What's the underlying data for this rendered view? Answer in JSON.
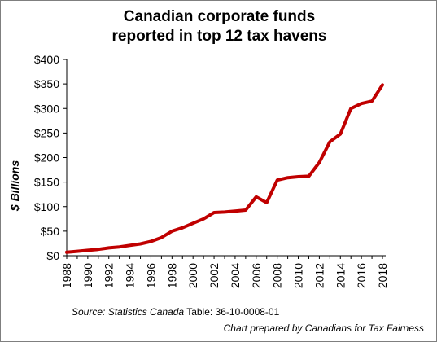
{
  "chart_data": {
    "type": "line",
    "title_line1": "Canadian corporate funds",
    "title_line2": "reported in top 12 tax havens",
    "ylabel": "$ Billions",
    "xlabel": "",
    "ylim": [
      0,
      400
    ],
    "yticks": [
      0,
      50,
      100,
      150,
      200,
      250,
      300,
      350,
      400
    ],
    "ytick_labels": [
      "$0",
      "$50",
      "$100",
      "$150",
      "$200",
      "$250",
      "$300",
      "$350",
      "$400"
    ],
    "xlim": [
      1988,
      2018
    ],
    "xticks": [
      1988,
      1990,
      1992,
      1994,
      1996,
      1998,
      2000,
      2002,
      2004,
      2006,
      2008,
      2010,
      2012,
      2014,
      2016,
      2018
    ],
    "xtick_labels": [
      "1988",
      "1990",
      "1992",
      "1994",
      "1996",
      "1998",
      "2000",
      "2002",
      "2004",
      "2006",
      "2008",
      "2010",
      "2012",
      "2014",
      "2016",
      "2018"
    ],
    "grid": false,
    "legend": "none",
    "series": [
      {
        "color": "#c00000",
        "x": [
          1988,
          1989,
          1990,
          1991,
          1992,
          1993,
          1994,
          1995,
          1996,
          1997,
          1998,
          1999,
          2000,
          2001,
          2002,
          2003,
          2004,
          2005,
          2006,
          2007,
          2008,
          2009,
          2010,
          2011,
          2012,
          2013,
          2014,
          2015,
          2016,
          2017,
          2018
        ],
        "values": [
          7,
          9,
          11,
          13,
          16,
          18,
          21,
          24,
          29,
          37,
          50,
          57,
          66,
          75,
          88,
          89,
          91,
          93,
          120,
          108,
          154,
          159,
          161,
          162,
          190,
          232,
          248,
          300,
          310,
          315,
          348
        ]
      }
    ]
  },
  "footer": {
    "source_label": "Source: Statistics Canada",
    "source_table": " Table: 36-10-0008-01",
    "credit": "Chart prepared by Canadians for Tax Fairness"
  }
}
